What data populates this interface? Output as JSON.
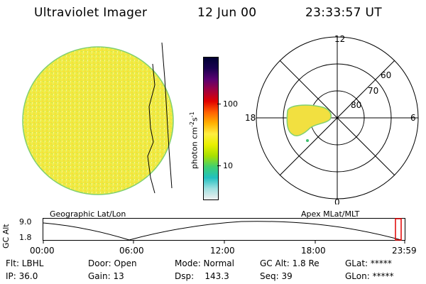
{
  "header": {
    "instrument": "Ultraviolet Imager",
    "date": "12 Jun 00",
    "time": "23:33:57 UT"
  },
  "colorbar": {
    "unit_label": "photon cm",
    "unit_sup1": "-2",
    "unit_s": "s",
    "unit_sup2": "-1",
    "tick_high": "100",
    "tick_low": "10",
    "colors": [
      "#000033",
      "#1a0050",
      "#5a0070",
      "#a00040",
      "#e00000",
      "#ff6000",
      "#ffb000",
      "#ffee40",
      "#e8f000",
      "#a8e000",
      "#40d070",
      "#20c0c0",
      "#a0e0e0",
      "#f0f0f0"
    ]
  },
  "polar": {
    "labels": {
      "top": "12",
      "right": "6",
      "left": "18",
      "bottom": "0"
    },
    "lat_labels": [
      "60",
      "70",
      "80"
    ]
  },
  "panels": {
    "left_caption": "Geographic Lat/Lon",
    "right_caption": "Apex MLat/MLT"
  },
  "timeline": {
    "y_label": "GC Alt",
    "y_ticks": [
      "9.0",
      "1.8"
    ],
    "x_ticks": [
      "00:00",
      "06:00",
      "12:00",
      "18:00",
      "23:59"
    ],
    "marker_color": "#e00000"
  },
  "info": {
    "flt": "Flt: LBHL",
    "ip": "IP: 36.0",
    "door": "Door: Open",
    "gain": "Gain: 13",
    "mode": "Mode: Normal",
    "dsp": "Dsp:    143.3",
    "gcalt": "GC Alt: 1.8 Re",
    "seq": "Seq: 39",
    "glat": "GLat: *****",
    "glon": "GLon: *****"
  }
}
